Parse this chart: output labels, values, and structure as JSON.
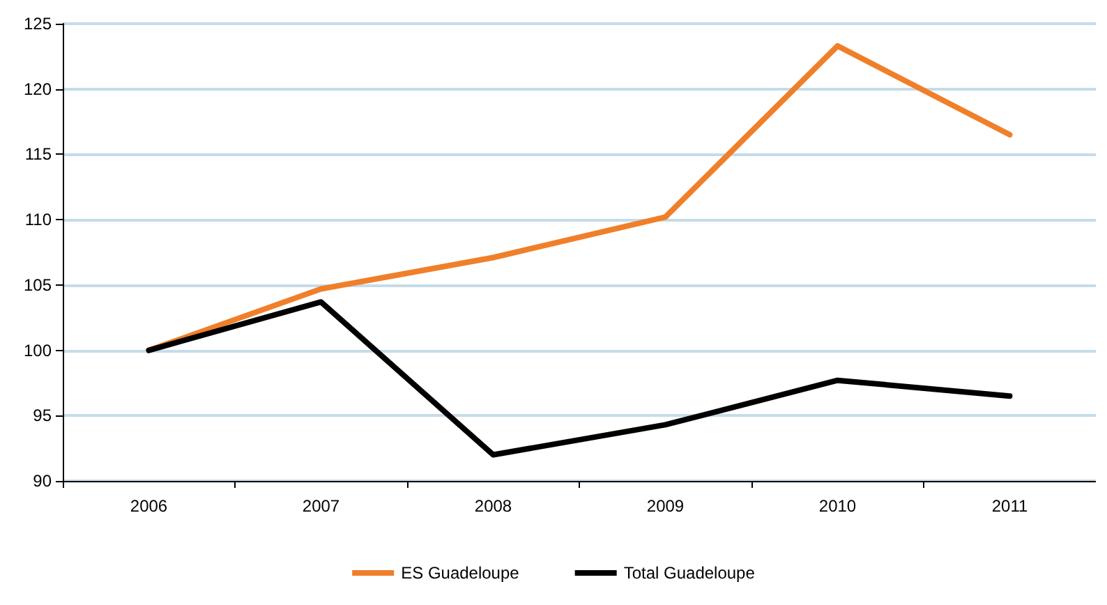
{
  "chart_data": {
    "type": "line",
    "categories": [
      "2006",
      "2007",
      "2008",
      "2009",
      "2010",
      "2011"
    ],
    "series": [
      {
        "name": "ES Guadeloupe",
        "color": "#f07f2a",
        "values": [
          100,
          104.7,
          107.1,
          110.2,
          123.3,
          116.5
        ]
      },
      {
        "name": "Total Guadeloupe",
        "color": "#000000",
        "values": [
          100,
          103.7,
          92.0,
          94.3,
          97.7,
          96.5
        ]
      }
    ],
    "ylim": [
      90,
      125
    ],
    "yticks": [
      90,
      95,
      100,
      105,
      110,
      115,
      120,
      125
    ],
    "grid": "y",
    "legend": "bottom",
    "marker": "none",
    "line_style": "solid"
  }
}
